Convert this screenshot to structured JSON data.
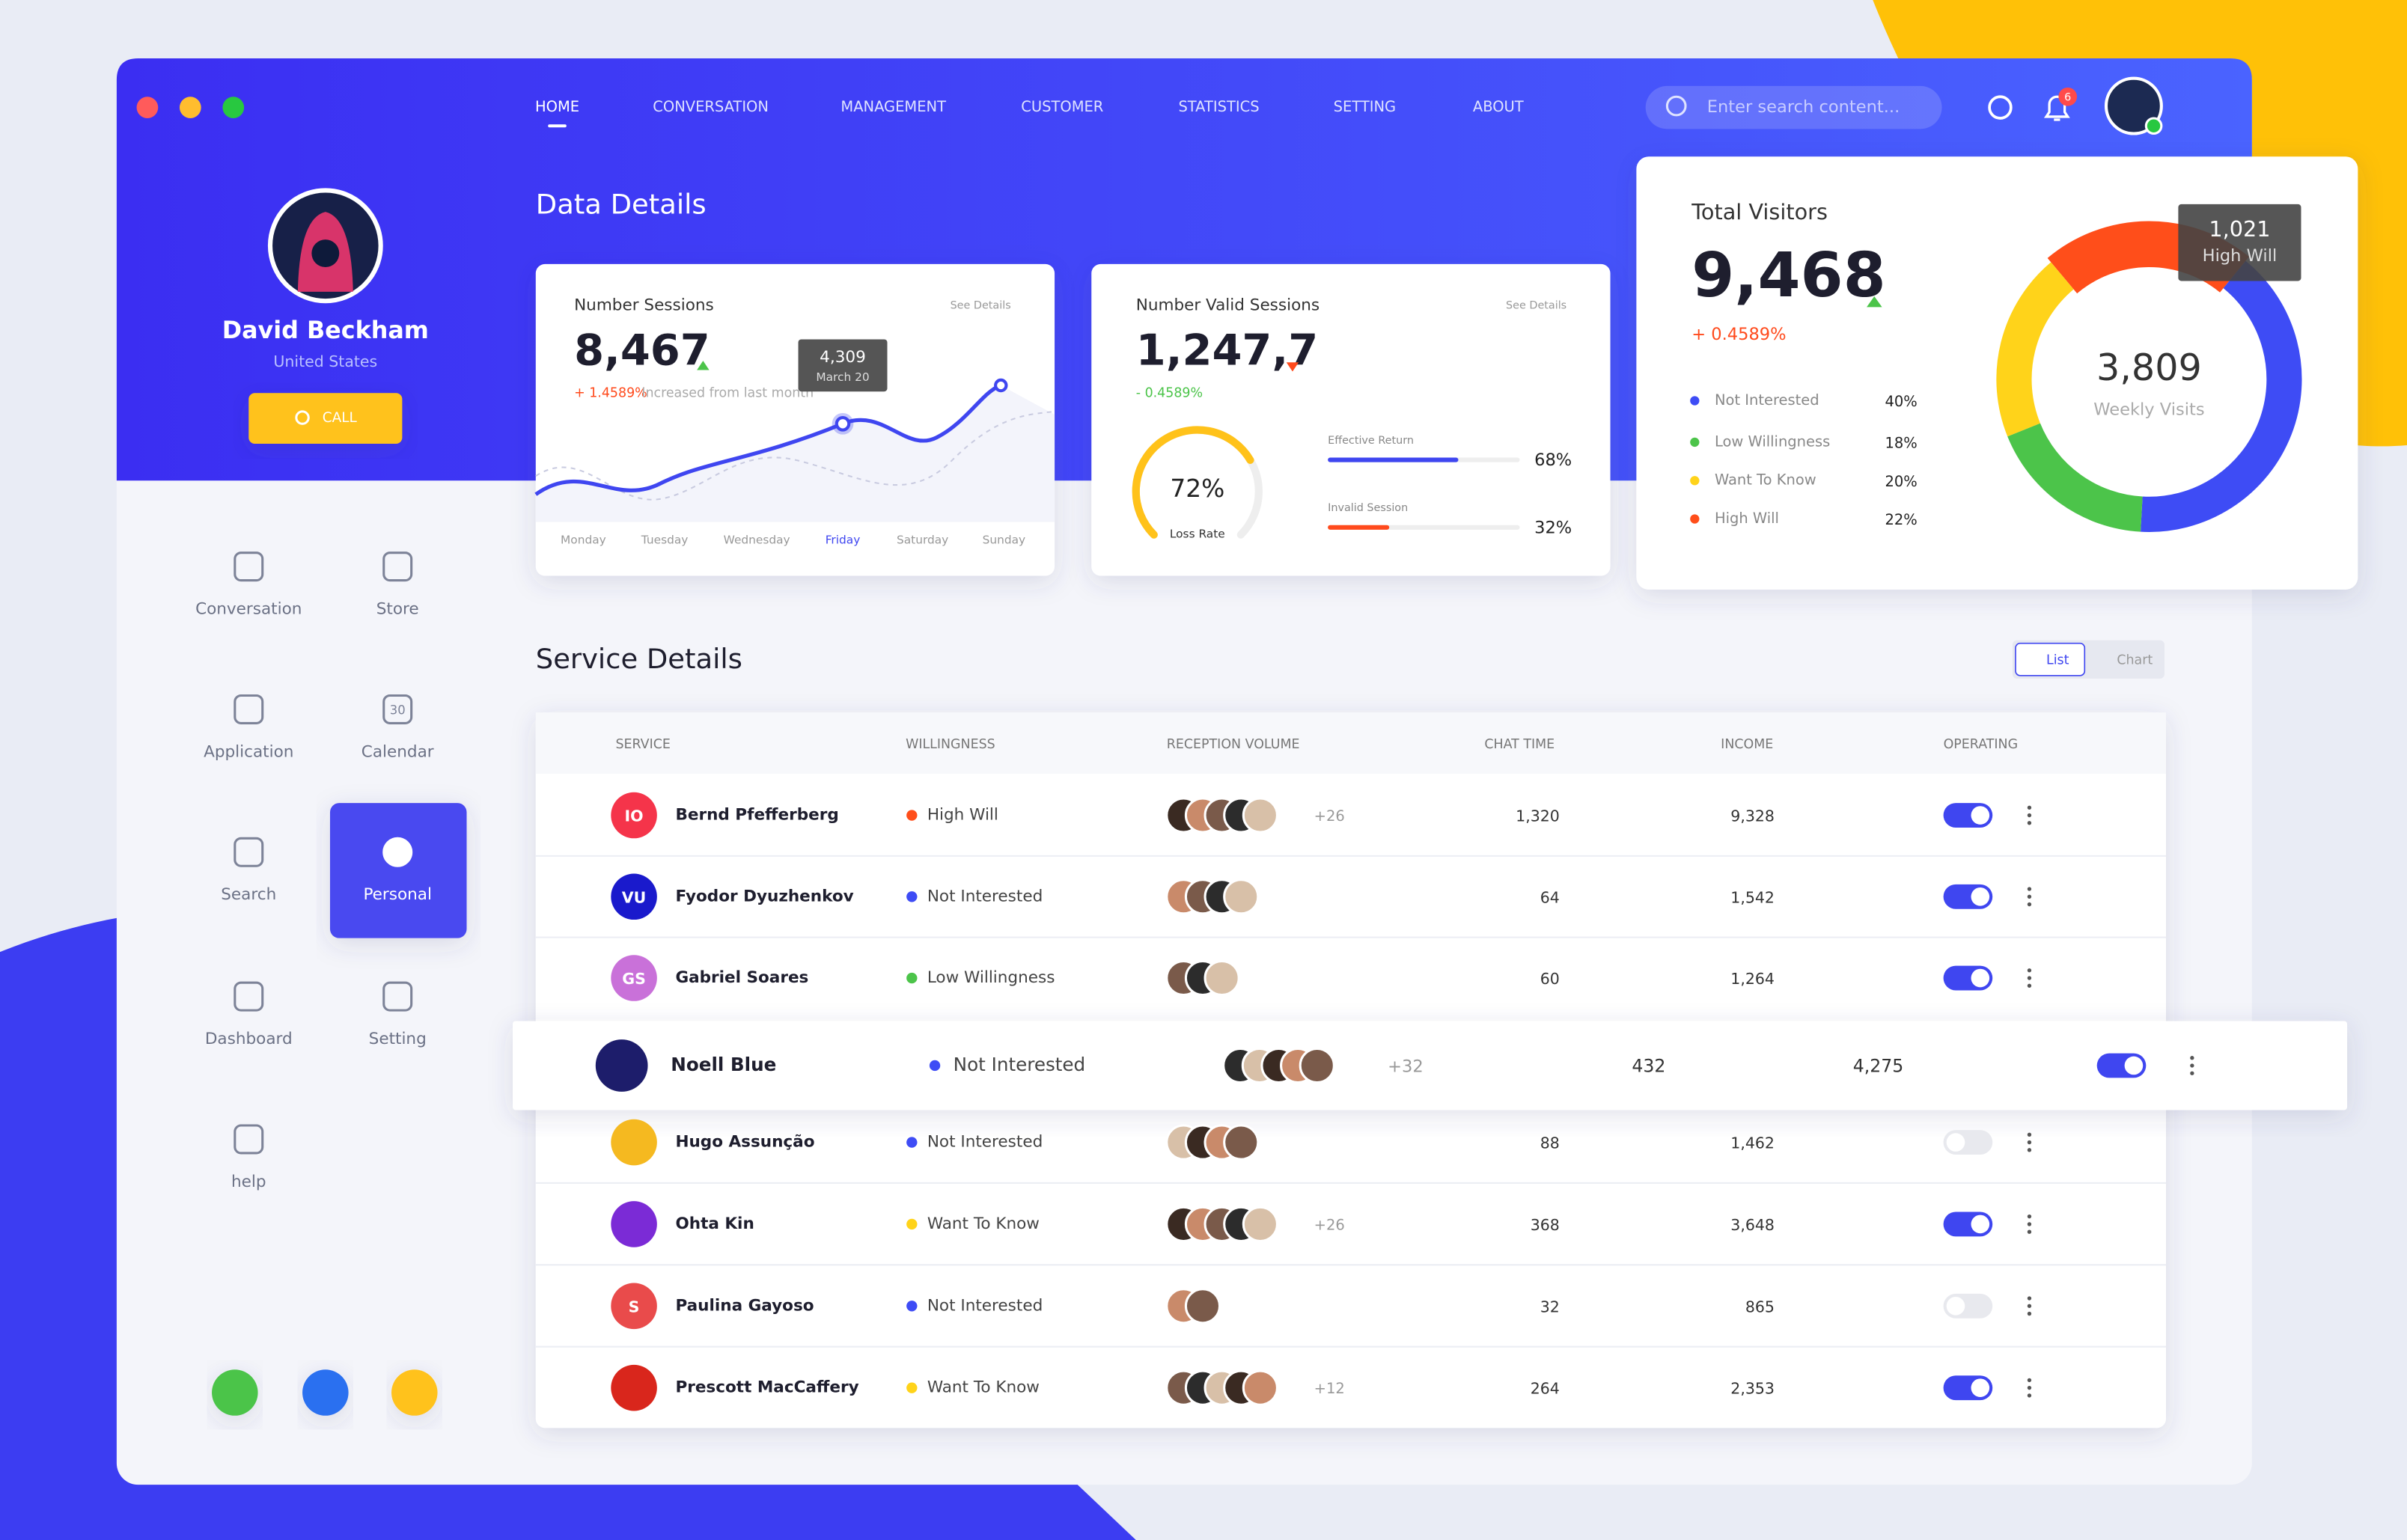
{
  "nav": {
    "items": [
      "HOME",
      "CONVERSATION",
      "MANAGEMENT",
      "CUSTOMER",
      "STATISTICS",
      "SETTING",
      "ABOUT"
    ],
    "search_placeholder": "Enter search content...",
    "notification_count": "6"
  },
  "profile": {
    "name": "David Beckham",
    "country": "United States",
    "call": "CALL"
  },
  "menu": [
    {
      "label": "Conversation"
    },
    {
      "label": "Store"
    },
    {
      "label": "Application"
    },
    {
      "label": "Calendar",
      "icon_text": "30"
    },
    {
      "label": "Search"
    },
    {
      "label": "Personal",
      "active": true
    },
    {
      "label": "Dashboard"
    },
    {
      "label": "Setting"
    },
    {
      "label": "help"
    }
  ],
  "data_details": {
    "title": "Data Details",
    "sessions": {
      "title": "Number Sessions",
      "link": "See Details",
      "value": "8,467",
      "change": "+ 1.4589%",
      "note": "Increased from last month",
      "tooltip_value": "4,309",
      "tooltip_date": "March 20",
      "days": [
        "Monday",
        "Tuesday",
        "Wednesday",
        "Friday",
        "Saturday",
        "Sunday"
      ],
      "active_day": 3
    },
    "valid_sessions": {
      "title": "Number Valid Sessions",
      "link": "See Details",
      "value": "1,247,7",
      "change": "- 0.4589%",
      "loss_rate": {
        "value": 72,
        "label": "72%"
      },
      "loss_rate_title": "Loss Rate",
      "bars": [
        {
          "name": "Effective Return",
          "value": {
            "value": 68,
            "label": "68%"
          },
          "color": "#3f46f0"
        },
        {
          "name": "Invalid Session",
          "value": {
            "value": 32,
            "label": "32%"
          },
          "color": "#ff4a1c"
        }
      ]
    }
  },
  "visitors": {
    "title": "Total Visitors",
    "value": "9,468",
    "change": "+ 0.4589%",
    "center_value": "3,809",
    "center_label": "Weekly Visits",
    "tooltip_value": "1,021",
    "tooltip_label": "High Will",
    "legend": [
      {
        "name": "Not Interested",
        "value": {
          "value": 40,
          "label": "40%"
        },
        "color": "#3e4cf5"
      },
      {
        "name": "Low Willingness",
        "value": {
          "value": 18,
          "label": "18%"
        },
        "color": "#4cc44a"
      },
      {
        "name": "Want To Know",
        "value": {
          "value": 20,
          "label": "20%"
        },
        "color": "#ffd31a"
      },
      {
        "name": "High Will",
        "value": {
          "value": 22,
          "label": "22%"
        },
        "color": "#ff4e1a"
      }
    ]
  },
  "service": {
    "title": "Service Details",
    "views": [
      "List",
      "Chart"
    ],
    "columns": [
      "SERVICE",
      "WILLINGNESS",
      "RECEPTION VOLUME",
      "CHAT TIME",
      "INCOME",
      "OPERATING"
    ],
    "rows": [
      {
        "name": "Bernd Pfefferberg",
        "logo": "IO",
        "color": "#f5344a",
        "willingness": "High Will",
        "extra": "+26",
        "chat_time": "1,320",
        "income": "9,328",
        "enabled": true
      },
      {
        "name": "Fyodor Dyuzhenkov",
        "logo": "VU",
        "color": "#1a1acc",
        "willingness": "Not Interested",
        "chat_time": "64",
        "income": "1,542",
        "enabled": true
      },
      {
        "name": "Gabriel Soares",
        "logo": "GS",
        "color": "#c971d9",
        "willingness": "Low Willingness",
        "chat_time": "60",
        "income": "1,264",
        "enabled": true
      },
      {
        "name": "Noell Blue",
        "color": "#1d1d6b",
        "willingness": "Not Interested",
        "extra": "+32",
        "chat_time": "432",
        "income": "4,275",
        "enabled": true,
        "highlight": true
      },
      {
        "name": "Hugo Assunção",
        "color": "#f5b920",
        "willingness": "Not Interested",
        "chat_time": "88",
        "income": "1,462",
        "enabled": false
      },
      {
        "name": "Ohta Kin",
        "color": "#7b2bd6",
        "willingness": "Want To Know",
        "extra": "+26",
        "chat_time": "368",
        "income": "3,648",
        "enabled": true
      },
      {
        "name": "Paulina Gayoso",
        "logo": "S",
        "color": "#e94b4b",
        "willingness": "Not Interested",
        "chat_time": "32",
        "income": "865",
        "enabled": false
      },
      {
        "name": "Prescott MacCaffery",
        "color": "#d9261c",
        "willingness": "Want To Know",
        "extra": "+12",
        "chat_time": "264",
        "income": "2,353",
        "enabled": true
      }
    ]
  }
}
